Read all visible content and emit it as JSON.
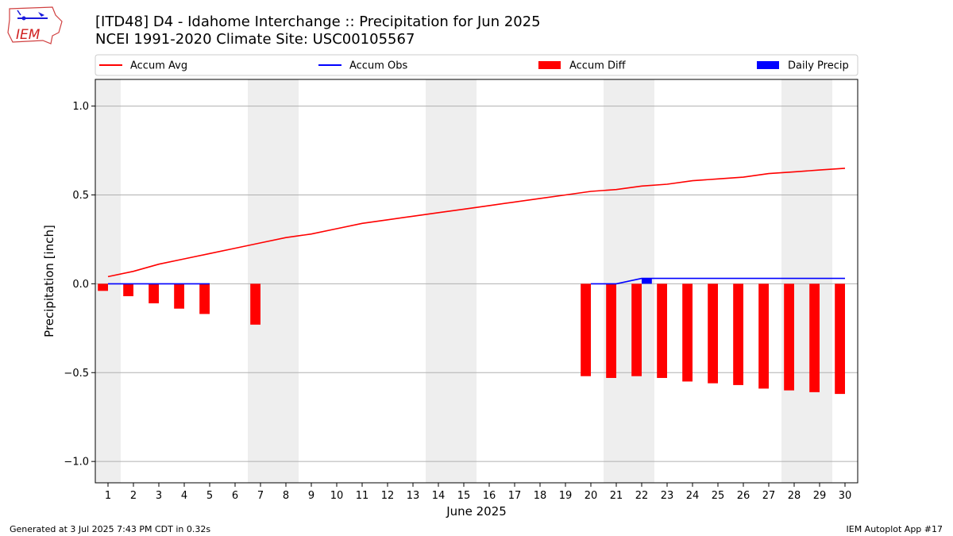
{
  "header": {
    "title_line1": "[ITD48] D4 - Idahome Interchange  :: Precipitation for Jun 2025",
    "title_line2": "NCEI 1991-2020 Climate Site: USC00105567",
    "logo_text": "IEM"
  },
  "footer": {
    "generated": "Generated at 3 Jul 2025 7:43 PM CDT in 0.32s",
    "app": "IEM Autoplot App #17"
  },
  "colors": {
    "accum_avg": "#ff0000",
    "accum_obs": "#0000ff",
    "accum_diff": "#ff0000",
    "daily_precip": "#0000ff",
    "weekend_shade": "#eeeeee",
    "grid": "#b0b0b0"
  },
  "chart_data": {
    "type": "bar",
    "xlabel": "June 2025",
    "ylabel": "Precipitation [inch]",
    "ylim": [
      -1.12,
      1.15
    ],
    "yticks": [
      -1.0,
      -0.5,
      0.0,
      0.5,
      1.0
    ],
    "ytick_labels": [
      "−1.0",
      "−0.5",
      "0.0",
      "0.5",
      "1.0"
    ],
    "x": [
      1,
      2,
      3,
      4,
      5,
      6,
      7,
      8,
      9,
      10,
      11,
      12,
      13,
      14,
      15,
      16,
      17,
      18,
      19,
      20,
      21,
      22,
      23,
      24,
      25,
      26,
      27,
      28,
      29,
      30
    ],
    "x_tick_labels": [
      "1",
      "2",
      "3",
      "4",
      "5",
      "6",
      "7",
      "8",
      "9",
      "10",
      "11",
      "12",
      "13",
      "14",
      "15",
      "16",
      "17",
      "18",
      "19",
      "20",
      "21",
      "22",
      "23",
      "24",
      "25",
      "26",
      "27",
      "28",
      "29",
      "30"
    ],
    "shaded_weekend_days": [
      1,
      7,
      8,
      14,
      15,
      21,
      22,
      28,
      29
    ],
    "grid": true,
    "legend": "top",
    "series": [
      {
        "name": "Accum Avg",
        "kind": "line",
        "color": "#ff0000",
        "values": [
          0.04,
          0.07,
          0.11,
          0.14,
          0.17,
          0.2,
          0.23,
          0.26,
          0.28,
          0.31,
          0.34,
          0.36,
          0.38,
          0.4,
          0.42,
          0.44,
          0.46,
          0.48,
          0.5,
          0.52,
          0.53,
          0.55,
          0.56,
          0.58,
          0.59,
          0.6,
          0.62,
          0.63,
          0.64,
          0.65
        ]
      },
      {
        "name": "Accum Obs",
        "kind": "line",
        "color": "#0000ff",
        "values": [
          0.0,
          0.0,
          0.0,
          0.0,
          0.0,
          null,
          null,
          null,
          null,
          null,
          null,
          null,
          null,
          null,
          null,
          null,
          null,
          null,
          null,
          0.0,
          0.0,
          0.03,
          0.03,
          0.03,
          0.03,
          0.03,
          0.03,
          0.03,
          0.03,
          0.03
        ]
      },
      {
        "name": "Accum Diff",
        "kind": "bar",
        "color": "#ff0000",
        "values": [
          -0.04,
          -0.07,
          -0.11,
          -0.14,
          -0.17,
          null,
          -0.23,
          null,
          null,
          null,
          null,
          null,
          null,
          null,
          null,
          null,
          null,
          null,
          null,
          -0.52,
          -0.53,
          -0.52,
          -0.53,
          -0.55,
          -0.56,
          -0.57,
          -0.59,
          -0.6,
          -0.61,
          -0.62
        ]
      },
      {
        "name": "Daily Precip",
        "kind": "bar",
        "color": "#0000ff",
        "values": [
          0,
          0,
          0,
          0,
          0,
          0,
          0,
          0,
          0,
          0,
          0,
          0,
          0,
          0,
          0,
          0,
          0,
          0,
          0,
          0,
          0,
          0.03,
          0,
          0,
          0,
          0,
          0,
          0,
          0,
          0
        ]
      }
    ]
  }
}
